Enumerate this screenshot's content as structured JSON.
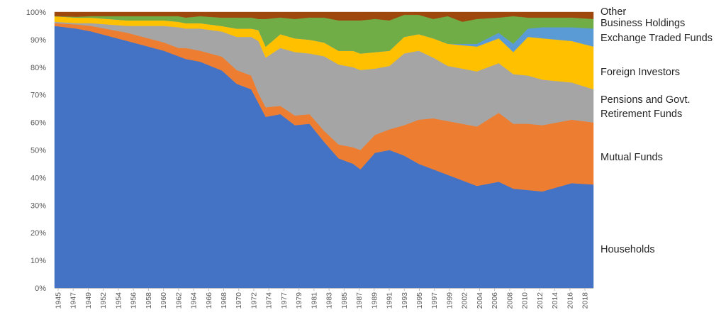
{
  "chart_data": {
    "type": "area",
    "stacked": true,
    "normalized_percent": true,
    "title": "",
    "xlabel": "",
    "ylabel": "",
    "ylim": [
      0,
      100
    ],
    "y_ticks": [
      "0%",
      "10%",
      "20%",
      "30%",
      "40%",
      "50%",
      "60%",
      "70%",
      "80%",
      "90%",
      "100%"
    ],
    "x_ticks": [
      "1945",
      "1947",
      "1949",
      "1952",
      "1954",
      "1956",
      "1958",
      "1960",
      "1962",
      "1964",
      "1966",
      "1968",
      "1970",
      "1972",
      "1974",
      "1977",
      "1979",
      "1981",
      "1983",
      "1985",
      "1987",
      "1989",
      "1991",
      "1993",
      "1995",
      "1997",
      "1999",
      "2002",
      "2004",
      "2006",
      "2008",
      "2010",
      "2012",
      "2014",
      "2016",
      "2018"
    ],
    "x_range": [
      1945,
      2019
    ],
    "grid": false,
    "legend": "right-side labels",
    "x": [
      1945,
      1948,
      1950,
      1955,
      1960,
      1962,
      1963,
      1965,
      1968,
      1970,
      1972,
      1973,
      1974,
      1976,
      1978,
      1980,
      1982,
      1984,
      1986,
      1987,
      1989,
      1991,
      1993,
      1995,
      1997,
      1999,
      2001,
      2003,
      2006,
      2008,
      2010,
      2012,
      2014,
      2016,
      2019
    ],
    "series": [
      {
        "name": "Households",
        "color": "#4472C4",
        "values": [
          95,
          94,
          93,
          89.5,
          86,
          84,
          83,
          82,
          78,
          74,
          72,
          67,
          62,
          63,
          59,
          59.5,
          53,
          47,
          45,
          43,
          49,
          50,
          48,
          45,
          43,
          41,
          39,
          37,
          38.5,
          36,
          35.5,
          35,
          36.5,
          38,
          37.5
        ]
      },
      {
        "name": "Mutual Funds",
        "color": "#ED7D31",
        "values": [
          1,
          1.5,
          2,
          3,
          3,
          3,
          4,
          4,
          5,
          5,
          5,
          3.5,
          3.5,
          3,
          3.5,
          3.5,
          4,
          5,
          6,
          7,
          6.5,
          7.5,
          11,
          16,
          18.5,
          19.5,
          20.5,
          21.5,
          25,
          23.5,
          24,
          24,
          23.5,
          23,
          22.5
        ]
      },
      {
        "name": "Pensions and Govt. Retirement Funds",
        "color": "#A5A5A5",
        "values": [
          0.5,
          0.5,
          1,
          2.5,
          6,
          7.5,
          7,
          8,
          9,
          12,
          14,
          19,
          18,
          21,
          23,
          22,
          27,
          29,
          29,
          29,
          24,
          23,
          26,
          25,
          22,
          20,
          20,
          20,
          18,
          18,
          17.5,
          16.5,
          15,
          13.5,
          12
        ]
      },
      {
        "name": "Foreign Investors",
        "color": "#FFC000",
        "values": [
          2,
          2,
          2,
          2,
          2,
          2,
          2,
          2,
          2,
          3,
          3,
          4,
          4,
          5,
          5,
          5,
          5,
          5,
          6,
          6,
          6,
          5.5,
          6,
          6,
          7,
          8,
          8.5,
          9,
          9,
          8,
          14,
          15,
          15,
          15,
          15.5
        ]
      },
      {
        "name": "Exchange Traded Funds",
        "color": "#5B9BD5",
        "values": [
          0,
          0,
          0,
          0,
          0,
          0,
          0,
          0,
          0,
          0,
          0,
          0,
          0,
          0,
          0,
          0,
          0,
          0,
          0,
          0,
          0,
          0,
          0,
          0,
          0,
          0,
          0.5,
          1,
          2,
          3,
          3,
          4,
          4.5,
          5,
          6.5
        ]
      },
      {
        "name": "Business Holdings",
        "color": "#70AD47",
        "values": [
          0,
          0.3,
          0.5,
          1.5,
          1.5,
          2,
          2,
          2.5,
          3,
          4,
          4,
          4,
          10,
          6,
          7,
          8,
          9,
          11,
          11,
          12,
          12,
          11,
          8,
          7,
          7,
          10,
          8,
          9,
          5.5,
          10,
          4,
          3.5,
          3.5,
          3.5,
          3.5
        ]
      },
      {
        "name": "Other",
        "color": "#9E480E",
        "values": [
          1.5,
          1.7,
          1.5,
          1.5,
          1.5,
          1.5,
          2,
          1.5,
          2,
          2,
          2,
          2.5,
          2.5,
          2,
          2.5,
          2,
          2,
          3,
          3,
          3,
          2.5,
          3,
          1,
          1,
          2.5,
          1.5,
          3.5,
          2.5,
          2,
          1.5,
          2,
          2,
          2,
          2,
          2.5
        ]
      }
    ],
    "series_labels": [
      {
        "lines": [
          "Other"
        ]
      },
      {
        "lines": [
          "Business Holdings"
        ]
      },
      {
        "lines": [
          "Exchange Traded Funds"
        ]
      },
      {
        "lines": [
          "Foreign Investors"
        ]
      },
      {
        "lines": [
          "Pensions and Govt.",
          "Retirement Funds"
        ]
      },
      {
        "lines": [
          "Mutual Funds"
        ]
      },
      {
        "lines": [
          "Households"
        ]
      }
    ]
  }
}
